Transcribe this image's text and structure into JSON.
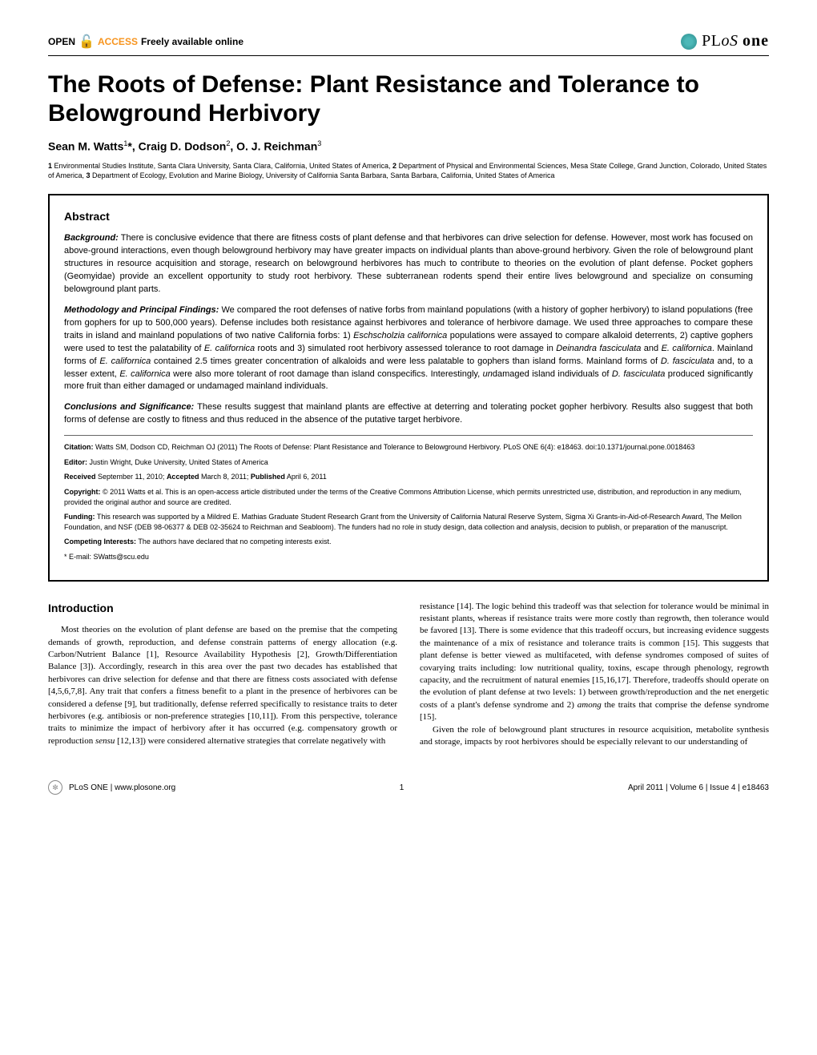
{
  "header": {
    "open": "OPEN",
    "access": "ACCESS",
    "tagline": "Freely available online",
    "journal_prefix": "PL",
    "journal_mid": "oS",
    "journal_suffix": "one"
  },
  "title": "The Roots of Defense: Plant Resistance and Tolerance to Belowground Herbivory",
  "authors_html": "Sean M. Watts<sup>1</sup>*, Craig D. Dodson<sup>2</sup>, O. J. Reichman<sup>3</sup>",
  "affiliations": "1 Environmental Studies Institute, Santa Clara University, Santa Clara, California, United States of America, 2 Department of Physical and Environmental Sciences, Mesa State College, Grand Junction, Colorado, United States of America, 3 Department of Ecology, Evolution and Marine Biology, University of California Santa Barbara, Santa Barbara, California, United States of America",
  "abstract": {
    "heading": "Abstract",
    "background_label": "Background:",
    "background": " There is conclusive evidence that there are fitness costs of plant defense and that herbivores can drive selection for defense. However, most work has focused on above-ground interactions, even though belowground herbivory may have greater impacts on individual plants than above-ground herbivory. Given the role of belowground plant structures in resource acquisition and storage, research on belowground herbivores has much to contribute to theories on the evolution of plant defense. Pocket gophers (Geomyidae) provide an excellent opportunity to study root herbivory. These subterranean rodents spend their entire lives belowground and specialize on consuming belowground plant parts.",
    "methods_label": "Methodology and Principal Findings:",
    "methods": " We compared the root defenses of native forbs from mainland populations (with a history of gopher herbivory) to island populations (free from gophers for up to 500,000 years). Defense includes both resistance against herbivores and tolerance of herbivore damage. We used three approaches to compare these traits in island and mainland populations of two native California forbs: 1) Eschscholzia californica populations were assayed to compare alkaloid deterrents, 2) captive gophers were used to test the palatability of E. californica roots and 3) simulated root herbivory assessed tolerance to root damage in Deinandra fasciculata and E. californica. Mainland forms of E. californica contained 2.5 times greater concentration of alkaloids and were less palatable to gophers than island forms. Mainland forms of D. fasciculata and, to a lesser extent, E. californica were also more tolerant of root damage than island conspecifics. Interestingly, undamaged island individuals of D. fasciculata produced significantly more fruit than either damaged or undamaged mainland individuals.",
    "conclusions_label": "Conclusions and Significance:",
    "conclusions": " These results suggest that mainland plants are effective at deterring and tolerating pocket gopher herbivory. Results also suggest that both forms of defense are costly to fitness and thus reduced in the absence of the putative target herbivore."
  },
  "meta": {
    "citation_label": "Citation:",
    "citation": " Watts SM, Dodson CD, Reichman OJ (2011) The Roots of Defense: Plant Resistance and Tolerance to Belowground Herbivory. PLoS ONE 6(4): e18463. doi:10.1371/journal.pone.0018463",
    "editor_label": "Editor:",
    "editor": " Justin Wright, Duke University, United States of America",
    "received_label": "Received",
    "received": " September 11, 2010; ",
    "accepted_label": "Accepted",
    "accepted": " March 8, 2011; ",
    "published_label": "Published",
    "published": " April 6, 2011",
    "copyright_label": "Copyright:",
    "copyright": " © 2011 Watts et al. This is an open-access article distributed under the terms of the Creative Commons Attribution License, which permits unrestricted use, distribution, and reproduction in any medium, provided the original author and source are credited.",
    "funding_label": "Funding:",
    "funding": " This research was supported by a Mildred E. Mathias Graduate Student Research Grant from the University of California Natural Reserve System, Sigma Xi Grants-in-Aid-of-Research Award, The Mellon Foundation, and NSF (DEB 98-06377 & DEB 02-35624 to Reichman and Seabloom). The funders had no role in study design, data collection and analysis, decision to publish, or preparation of the manuscript.",
    "competing_label": "Competing Interests:",
    "competing": " The authors have declared that no competing interests exist.",
    "email": "* E-mail: SWatts@scu.edu"
  },
  "body": {
    "intro_heading": "Introduction",
    "col1_p1": "Most theories on the evolution of plant defense are based on the premise that the competing demands of growth, reproduction, and defense constrain patterns of energy allocation (e.g. Carbon/Nutrient Balance [1], Resource Availability Hypothesis [2], Growth/Differentiation Balance [3]). Accordingly, research in this area over the past two decades has established that herbivores can drive selection for defense and that there are fitness costs associated with defense [4,5,6,7,8]. Any trait that confers a fitness benefit to a plant in the presence of herbivores can be considered a defense [9], but traditionally, defense referred specifically to resistance traits to deter herbivores (e.g. antibiosis or non-preference strategies [10,11]). From this perspective, tolerance traits to minimize the impact of herbivory after it has occurred (e.g. compensatory growth or reproduction sensu [12,13]) were considered alternative strategies that correlate negatively with",
    "col2_p1": "resistance [14]. The logic behind this tradeoff was that selection for tolerance would be minimal in resistant plants, whereas if resistance traits were more costly than regrowth, then tolerance would be favored [13]. There is some evidence that this tradeoff occurs, but increasing evidence suggests the maintenance of a mix of resistance and tolerance traits is common [15]. This suggests that plant defense is better viewed as multifaceted, with defense syndromes composed of suites of covarying traits including: low nutritional quality, toxins, escape through phenology, regrowth capacity, and the recruitment of natural enemies [15,16,17]. Therefore, tradeoffs should operate on the evolution of plant defense at two levels: 1) between growth/reproduction and the net energetic costs of a plant's defense syndrome and 2) among the traits that comprise the defense syndrome [15].",
    "col2_p2": "Given the role of belowground plant structures in resource acquisition, metabolite synthesis and storage, impacts by root herbivores should be especially relevant to our understanding of"
  },
  "footer": {
    "journal": "PLoS ONE | www.plosone.org",
    "page": "1",
    "issue": "April 2011 | Volume 6 | Issue 4 | e18463"
  }
}
